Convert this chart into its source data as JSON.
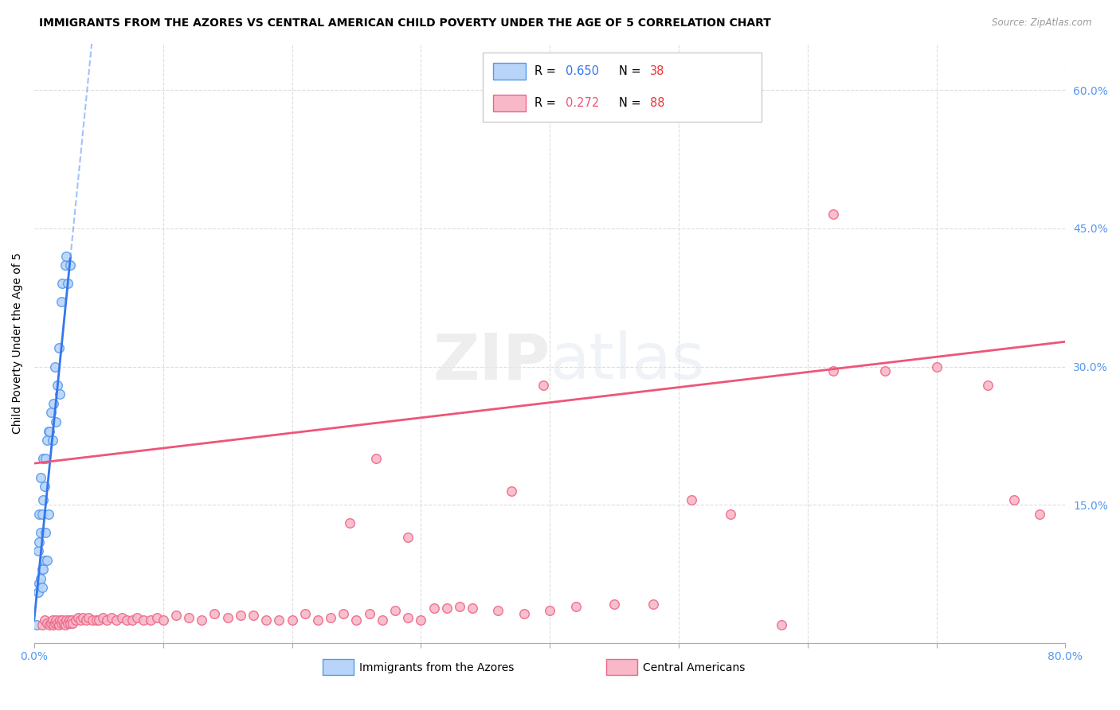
{
  "title": "IMMIGRANTS FROM THE AZORES VS CENTRAL AMERICAN CHILD POVERTY UNDER THE AGE OF 5 CORRELATION CHART",
  "source": "Source: ZipAtlas.com",
  "ylabel": "Child Poverty Under the Age of 5",
  "xlim": [
    0.0,
    0.8
  ],
  "ylim": [
    0.0,
    0.65
  ],
  "x_tick_positions": [
    0.0,
    0.1,
    0.2,
    0.3,
    0.4,
    0.5,
    0.6,
    0.7,
    0.8
  ],
  "x_tick_labels": [
    "0.0%",
    "",
    "",
    "",
    "",
    "",
    "",
    "",
    "80.0%"
  ],
  "y_tick_positions": [
    0.0,
    0.15,
    0.3,
    0.45,
    0.6
  ],
  "y_tick_labels": [
    "",
    "15.0%",
    "30.0%",
    "45.0%",
    "60.0%"
  ],
  "legend_label1": "Immigrants from the Azores",
  "legend_label2": "Central Americans",
  "azores_face_color": "#b8d4f8",
  "azores_edge_color": "#5599ee",
  "central_face_color": "#f8b8c8",
  "central_edge_color": "#ee6688",
  "azores_line_color": "#3377ee",
  "central_line_color": "#ee5577",
  "grid_color": "#dddddd",
  "tick_color": "#5599ee",
  "watermark": "ZIPatlas",
  "az_line_intercept": 0.025,
  "az_line_slope": 14.0,
  "az_line_solid_end": 0.028,
  "az_line_dash_end": 0.065,
  "ca_line_intercept": 0.195,
  "ca_line_slope": 0.165,
  "azores_x": [
    0.002,
    0.003,
    0.003,
    0.004,
    0.004,
    0.004,
    0.005,
    0.005,
    0.005,
    0.006,
    0.006,
    0.006,
    0.007,
    0.007,
    0.007,
    0.008,
    0.008,
    0.009,
    0.009,
    0.01,
    0.01,
    0.011,
    0.011,
    0.012,
    0.013,
    0.014,
    0.015,
    0.016,
    0.017,
    0.018,
    0.019,
    0.02,
    0.021,
    0.022,
    0.024,
    0.025,
    0.026,
    0.028
  ],
  "azores_y": [
    0.02,
    0.055,
    0.1,
    0.065,
    0.11,
    0.14,
    0.07,
    0.12,
    0.18,
    0.06,
    0.08,
    0.14,
    0.08,
    0.155,
    0.2,
    0.09,
    0.17,
    0.12,
    0.2,
    0.09,
    0.22,
    0.14,
    0.23,
    0.23,
    0.25,
    0.22,
    0.26,
    0.3,
    0.24,
    0.28,
    0.32,
    0.27,
    0.37,
    0.39,
    0.41,
    0.42,
    0.39,
    0.41
  ],
  "central_x": [
    0.006,
    0.008,
    0.01,
    0.012,
    0.013,
    0.014,
    0.015,
    0.016,
    0.017,
    0.018,
    0.019,
    0.02,
    0.021,
    0.022,
    0.023,
    0.024,
    0.025,
    0.026,
    0.027,
    0.028,
    0.029,
    0.03,
    0.032,
    0.034,
    0.036,
    0.038,
    0.04,
    0.042,
    0.045,
    0.048,
    0.05,
    0.053,
    0.056,
    0.06,
    0.064,
    0.068,
    0.072,
    0.076,
    0.08,
    0.085,
    0.09,
    0.095,
    0.1,
    0.11,
    0.12,
    0.13,
    0.14,
    0.15,
    0.16,
    0.17,
    0.18,
    0.19,
    0.2,
    0.21,
    0.22,
    0.23,
    0.24,
    0.25,
    0.26,
    0.27,
    0.28,
    0.29,
    0.3,
    0.31,
    0.32,
    0.33,
    0.34,
    0.36,
    0.38,
    0.4,
    0.42,
    0.45,
    0.48,
    0.51,
    0.54,
    0.58,
    0.62,
    0.66,
    0.7,
    0.74,
    0.76,
    0.78,
    0.395,
    0.37,
    0.265,
    0.245,
    0.29,
    0.62
  ],
  "central_y": [
    0.02,
    0.025,
    0.022,
    0.02,
    0.022,
    0.025,
    0.02,
    0.022,
    0.025,
    0.022,
    0.02,
    0.025,
    0.022,
    0.025,
    0.022,
    0.02,
    0.025,
    0.022,
    0.025,
    0.022,
    0.025,
    0.022,
    0.025,
    0.028,
    0.025,
    0.028,
    0.025,
    0.028,
    0.025,
    0.025,
    0.025,
    0.028,
    0.025,
    0.028,
    0.025,
    0.028,
    0.025,
    0.025,
    0.028,
    0.025,
    0.025,
    0.028,
    0.025,
    0.03,
    0.028,
    0.025,
    0.032,
    0.028,
    0.03,
    0.03,
    0.025,
    0.025,
    0.025,
    0.032,
    0.025,
    0.028,
    0.032,
    0.025,
    0.032,
    0.025,
    0.035,
    0.028,
    0.025,
    0.038,
    0.038,
    0.04,
    0.038,
    0.035,
    0.032,
    0.035,
    0.04,
    0.042,
    0.042,
    0.155,
    0.14,
    0.02,
    0.295,
    0.295,
    0.3,
    0.28,
    0.155,
    0.14,
    0.28,
    0.165,
    0.2,
    0.13,
    0.115,
    0.465
  ]
}
